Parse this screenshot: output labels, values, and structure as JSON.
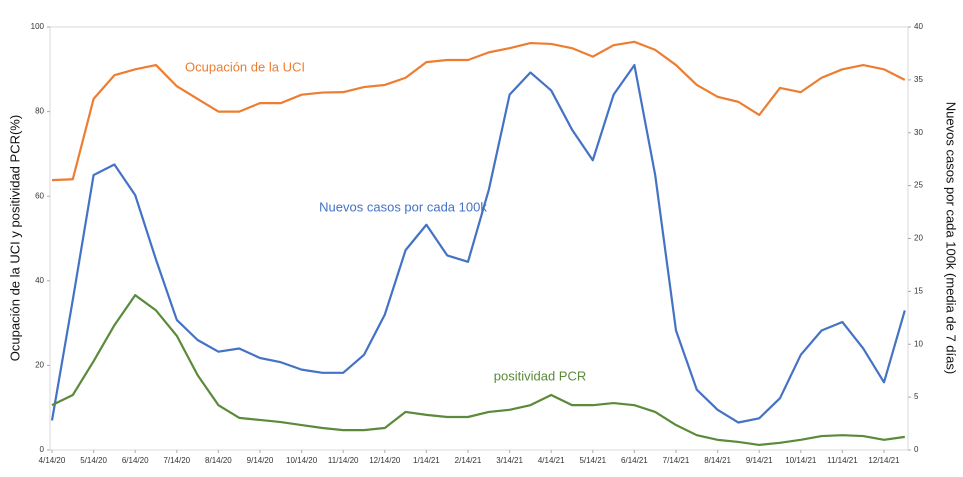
{
  "chart_data": {
    "type": "line",
    "categories": [
      "4/14/20",
      null,
      "5/14/20",
      null,
      "6/14/20",
      null,
      "7/14/20",
      null,
      "8/14/20",
      null,
      "9/14/20",
      null,
      "10/14/20",
      null,
      "11/14/20",
      null,
      "12/14/20",
      null,
      "1/14/21",
      null,
      "2/14/21",
      null,
      "3/14/21",
      null,
      "4/14/21",
      null,
      "5/14/21",
      null,
      "6/14/21",
      null,
      "7/14/21",
      null,
      "8/14/21",
      null,
      "9/14/21",
      null,
      "10/14/21",
      null,
      "11/14/21",
      null,
      "12/14/21",
      null
    ],
    "y_label": "Ocupación de la UCI y positividad  PCR(%)",
    "y2_label": "Nuevos casos por cada 100k (media de 7 días)",
    "ylim": [
      0,
      100
    ],
    "yticks": [
      0,
      20,
      40,
      60,
      80,
      100
    ],
    "y2lim": [
      0,
      40
    ],
    "y2ticks": [
      0,
      5,
      10,
      15,
      20,
      25,
      30,
      35,
      40
    ],
    "grid": false,
    "series": [
      {
        "name": "Ocupación de la UCI",
        "color": "#ed7d31",
        "values": [
          63.8,
          64,
          83,
          88.6,
          90,
          91,
          86,
          83,
          80,
          80,
          82,
          82,
          84,
          84.5,
          84.6,
          85.8,
          86.3,
          88,
          91.7,
          92.2,
          92.2,
          94,
          95,
          96.2,
          96,
          95,
          93,
          95.7,
          96.5,
          94.6,
          91,
          86.3,
          83.5,
          82.3,
          79.2,
          85.6,
          84.6,
          88,
          90,
          91,
          90,
          87.5
        ]
      },
      {
        "name": "Nuevos casos por cada 100k",
        "color": "#4472c4",
        "axis": "y2",
        "values": [
          2.8,
          14.2,
          26,
          27,
          24.1,
          18,
          12.3,
          10.4,
          9.3,
          9.6,
          8.7,
          8.3,
          7.6,
          7.3,
          7.3,
          9,
          12.8,
          18.9,
          21.3,
          18.4,
          17.8,
          24.6,
          33.6,
          35.7,
          34,
          30.3,
          27.4,
          33.6,
          36.4,
          26,
          11.3,
          5.7,
          3.8,
          2.6,
          3,
          4.9,
          9,
          11.3,
          12.1,
          9.6,
          6.4,
          13.2
        ]
      },
      {
        "name": "positividad  PCR",
        "color": "#5a8a3a",
        "values": [
          10.6,
          13,
          21,
          29.5,
          36.6,
          33,
          27,
          17.7,
          10.6,
          7.6,
          7.1,
          6.6,
          5.9,
          5.2,
          4.7,
          4.7,
          5.2,
          9,
          8.3,
          7.8,
          7.8,
          9,
          9.5,
          10.6,
          13,
          10.6,
          10.6,
          11.1,
          10.6,
          9,
          5.9,
          3.5,
          2.4,
          1.9,
          1.2,
          1.7,
          2.4,
          3.3,
          3.5,
          3.3,
          2.4,
          3.1
        ]
      }
    ]
  }
}
